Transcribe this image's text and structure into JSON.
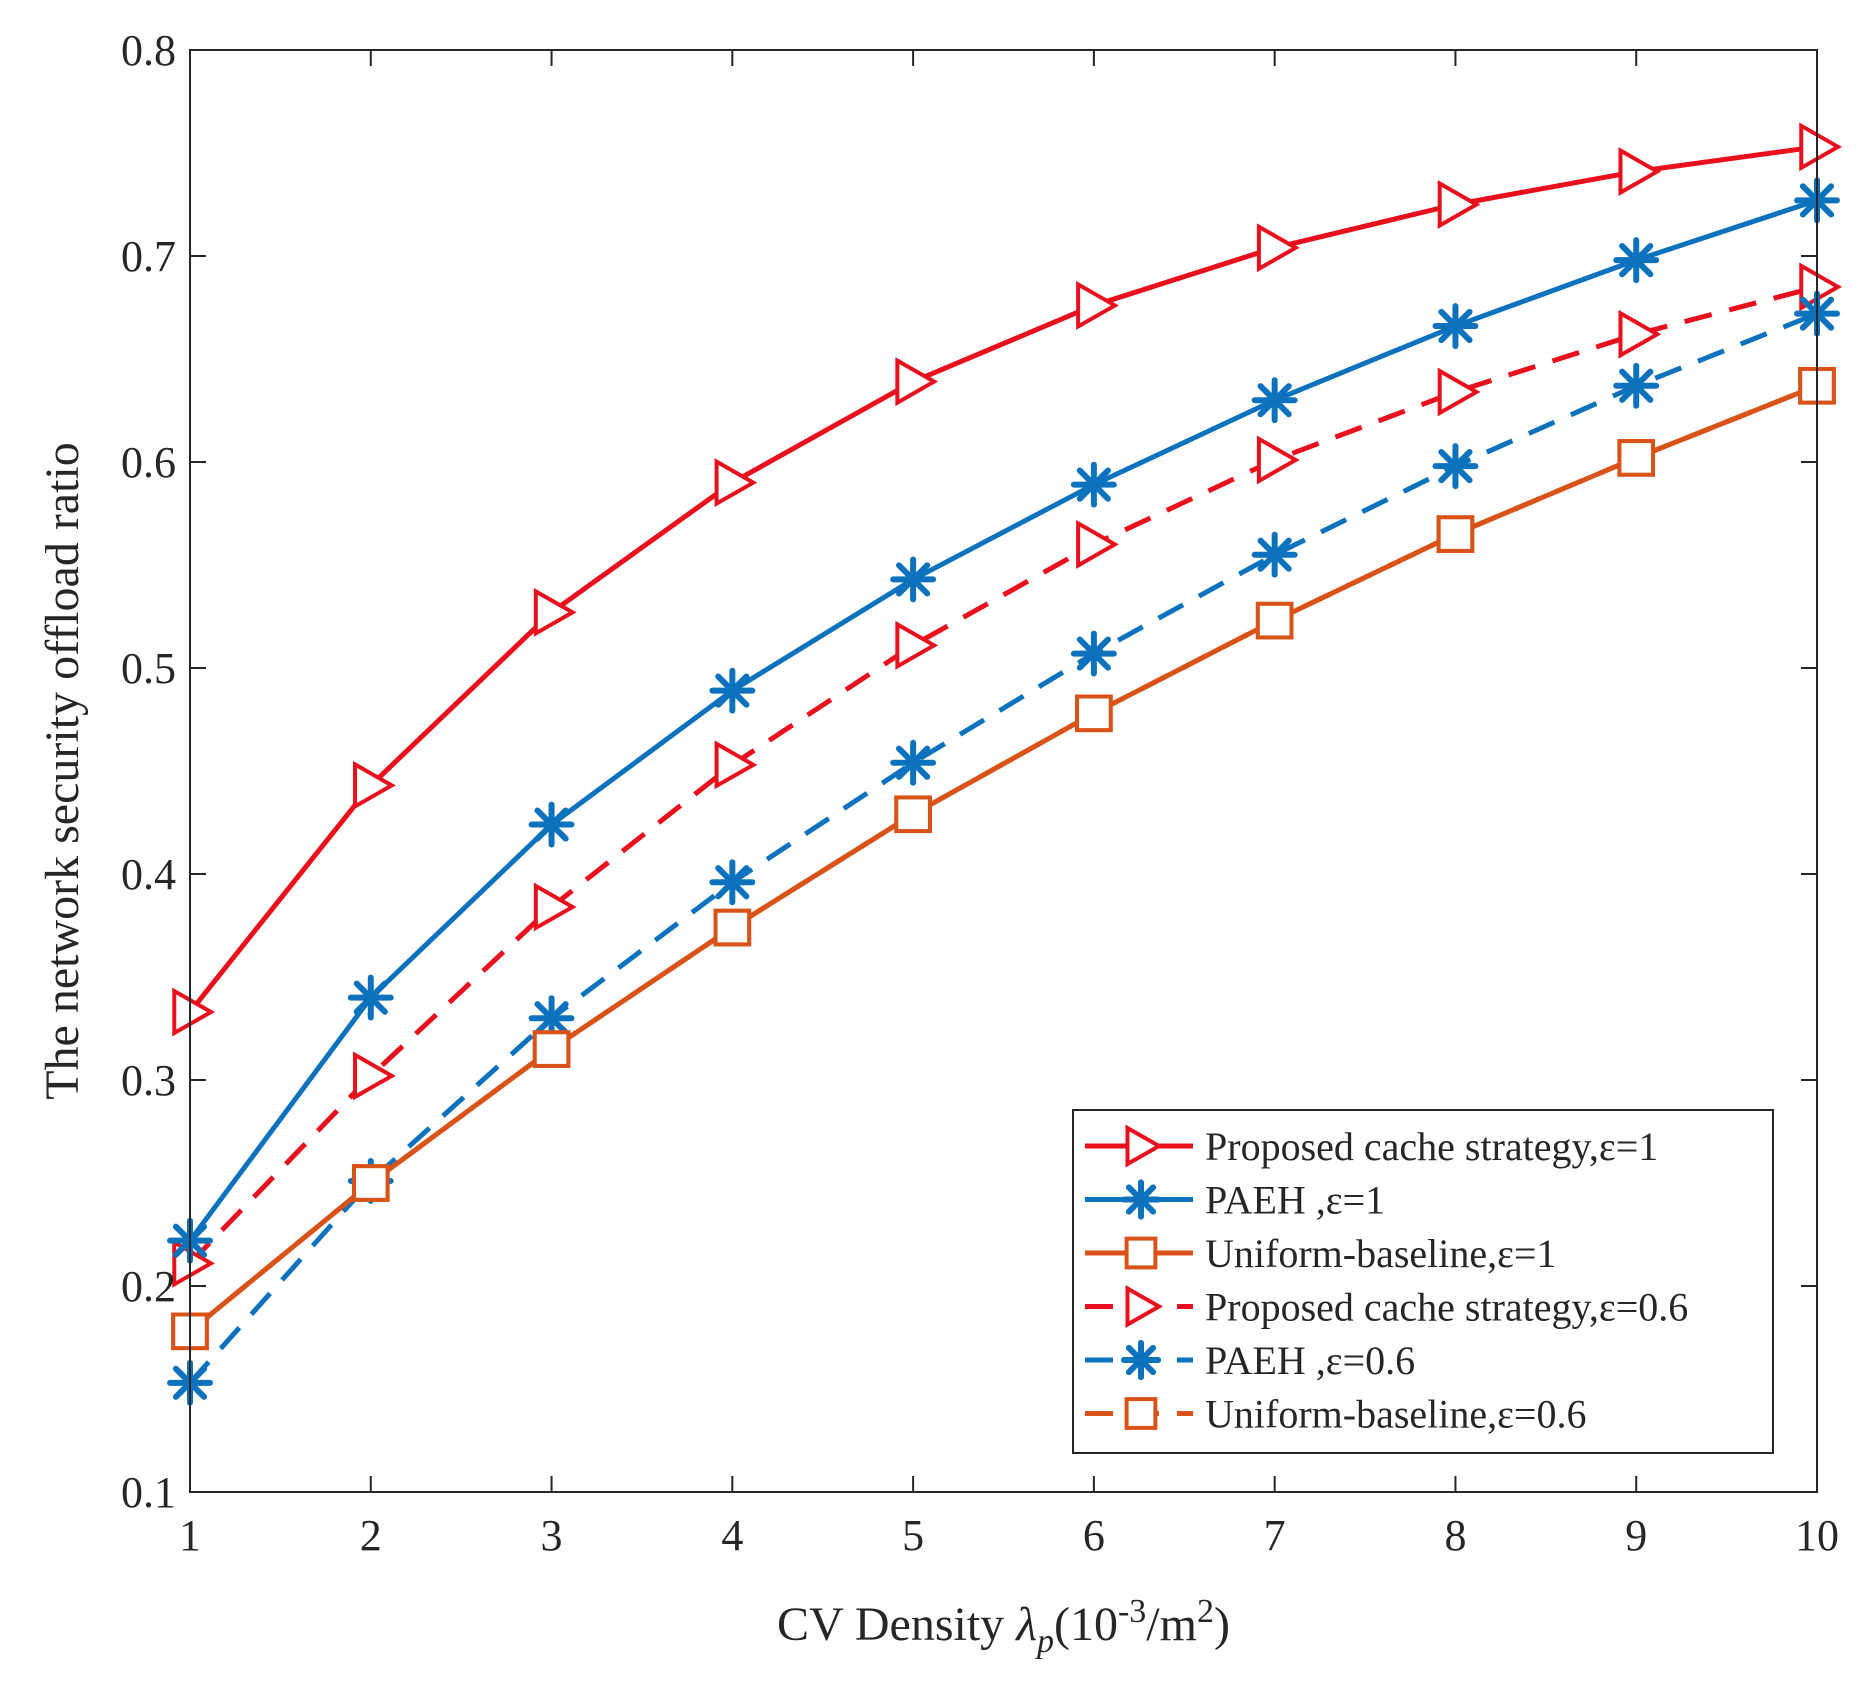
{
  "chart_data": {
    "type": "line",
    "title": "",
    "xlabel": {
      "prefix": "CV Density ",
      "symbol": "λ",
      "subscript": "p",
      "unit_open": "(10",
      "unit_exp": "-3",
      "unit_mid": "/m",
      "unit_exp2": "2",
      "unit_close": ")"
    },
    "ylabel": "The network security offload ratio",
    "xlim": [
      1,
      10
    ],
    "ylim": [
      0.1,
      0.8
    ],
    "x_ticks": [
      1,
      2,
      3,
      4,
      5,
      6,
      7,
      8,
      9,
      10
    ],
    "x_tick_labels": [
      "1",
      "2",
      "3",
      "4",
      "5",
      "6",
      "7",
      "8",
      "9",
      "10"
    ],
    "y_ticks": [
      0.1,
      0.2,
      0.3,
      0.4,
      0.5,
      0.6,
      0.7,
      0.8
    ],
    "y_tick_labels": [
      "0.1",
      "0.2",
      "0.3",
      "0.4",
      "0.5",
      "0.6",
      "0.7",
      "0.8"
    ],
    "grid": false,
    "legend_position": "bottom-right",
    "x": [
      1,
      2,
      3,
      4,
      5,
      6,
      7,
      8,
      9,
      10
    ],
    "series": [
      {
        "name": "Proposed cache strategy,ε=1",
        "color": "#e8101c",
        "line": "solid",
        "marker": "triangle-right",
        "values": [
          0.333,
          0.443,
          0.527,
          0.59,
          0.639,
          0.676,
          0.704,
          0.725,
          0.741,
          0.753
        ]
      },
      {
        "name": "PAEH ,ε=1",
        "color": "#0d72bd",
        "line": "solid",
        "marker": "asterisk",
        "values": [
          0.222,
          0.34,
          0.424,
          0.489,
          0.543,
          0.589,
          0.63,
          0.666,
          0.698,
          0.727
        ]
      },
      {
        "name": "Uniform-baseline,ε=1",
        "color": "#d95319",
        "line": "solid",
        "marker": "square",
        "values": [
          0.178,
          0.25,
          0.315,
          0.374,
          0.429,
          0.478,
          0.523,
          0.565,
          0.602,
          0.637
        ]
      },
      {
        "name": "Proposed cache strategy,ε=0.6",
        "color": "#e8101c",
        "line": "dashed",
        "marker": "triangle-right",
        "values": [
          0.211,
          0.302,
          0.384,
          0.453,
          0.511,
          0.56,
          0.601,
          0.634,
          0.662,
          0.685
        ]
      },
      {
        "name": "PAEH ,ε=0.6",
        "color": "#0d72bd",
        "line": "dashed",
        "marker": "asterisk",
        "values": [
          0.153,
          0.251,
          0.33,
          0.396,
          0.454,
          0.507,
          0.555,
          0.598,
          0.637,
          0.672
        ]
      },
      {
        "name": "Uniform-baseline,ε=0.6",
        "color": "#d95319",
        "line": "dashed",
        "marker": "square",
        "values": [
          0.178,
          0.25,
          0.315,
          0.374,
          0.429,
          0.478,
          0.523,
          0.565,
          0.602,
          0.637
        ]
      }
    ]
  }
}
